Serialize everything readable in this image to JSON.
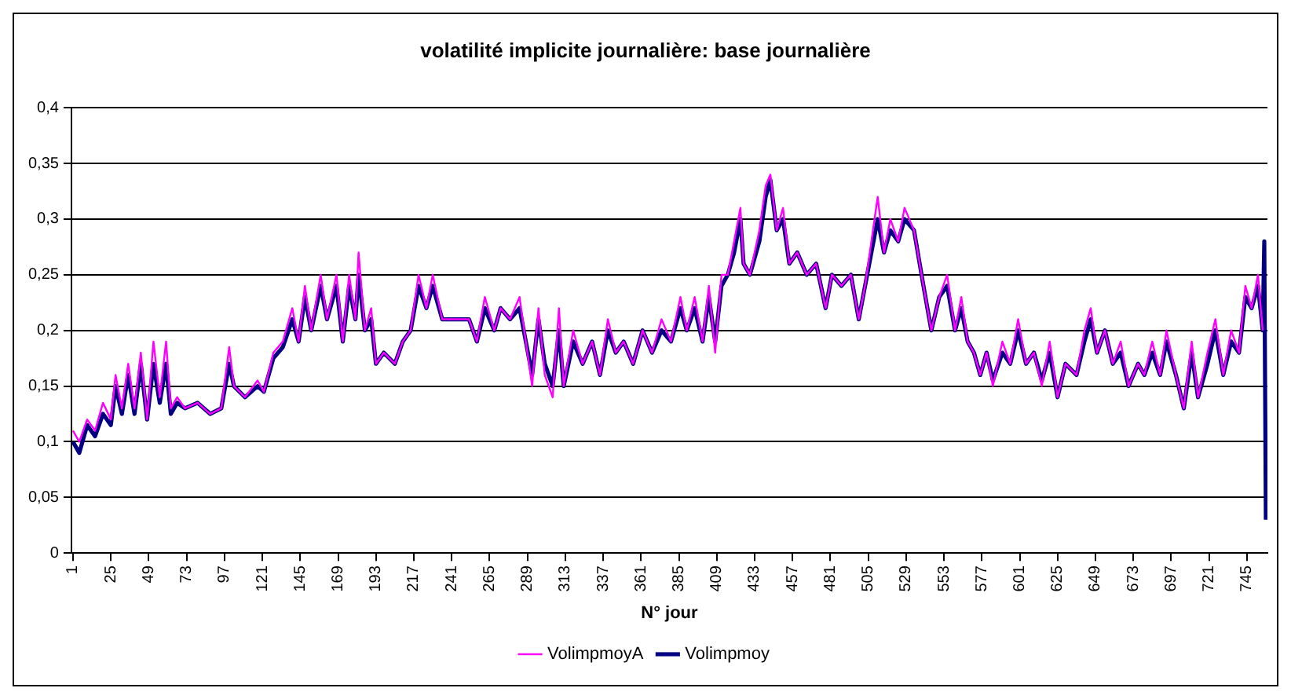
{
  "chart_data": {
    "type": "line",
    "title": "volatilité implicite journalière: base journalière",
    "xlabel": "N° jour",
    "xlim": [
      0,
      758
    ],
    "xticks": [
      1,
      25,
      49,
      73,
      97,
      121,
      145,
      169,
      193,
      217,
      241,
      265,
      289,
      313,
      337,
      361,
      385,
      409,
      433,
      457,
      481,
      505,
      529,
      553,
      577,
      601,
      625,
      649,
      673,
      697,
      721,
      745
    ],
    "ylim": [
      0,
      0.4
    ],
    "yticks": [
      0,
      {
        "value": 0.05,
        "label": "0,05"
      },
      {
        "value": 0.1,
        "label": "0,1"
      },
      {
        "value": 0.15,
        "label": "0,15"
      },
      {
        "value": 0.2,
        "label": "0,2"
      },
      {
        "value": 0.25,
        "label": "0,25"
      },
      {
        "value": 0.3,
        "label": "0,3"
      },
      {
        "value": 0.35,
        "label": "0,35"
      },
      {
        "value": 0.4,
        "label": "0,4"
      }
    ],
    "grid": "y",
    "legend": "bottom",
    "marker": "none",
    "line_style": "solid",
    "series": [
      {
        "name": "Volimpmoy",
        "color": "#000080",
        "x": [
          1,
          5,
          10,
          15,
          20,
          25,
          28,
          32,
          36,
          40,
          44,
          48,
          52,
          56,
          60,
          63,
          67,
          72,
          80,
          88,
          95,
          100,
          103,
          110,
          118,
          122,
          128,
          134,
          140,
          144,
          148,
          152,
          158,
          162,
          168,
          172,
          176,
          180,
          182,
          186,
          190,
          193,
          198,
          205,
          210,
          215,
          220,
          225,
          229,
          235,
          240,
          245,
          252,
          257,
          262,
          268,
          272,
          278,
          284,
          288,
          292,
          296,
          300,
          305,
          309,
          312,
          318,
          324,
          330,
          335,
          340,
          345,
          350,
          356,
          362,
          368,
          374,
          380,
          386,
          390,
          395,
          400,
          404,
          408,
          412,
          416,
          420,
          424,
          426,
          430,
          436,
          440,
          443,
          447,
          451,
          455,
          460,
          466,
          472,
          478,
          482,
          488,
          494,
          499,
          503,
          507,
          511,
          515,
          519,
          524,
          528,
          534,
          540,
          545,
          550,
          555,
          560,
          564,
          568,
          572,
          576,
          580,
          584,
          590,
          595,
          600,
          605,
          610,
          615,
          620,
          625,
          630,
          637,
          642,
          646,
          650,
          655,
          660,
          665,
          670,
          676,
          680,
          685,
          690,
          694,
          700,
          705,
          710,
          714,
          720,
          725,
          730,
          735,
          740,
          744,
          748,
          752,
          755,
          756,
          757
        ],
        "values": [
          0.1,
          0.09,
          0.115,
          0.105,
          0.125,
          0.115,
          0.15,
          0.125,
          0.16,
          0.125,
          0.17,
          0.12,
          0.17,
          0.135,
          0.17,
          0.125,
          0.135,
          0.13,
          0.135,
          0.125,
          0.13,
          0.17,
          0.15,
          0.14,
          0.15,
          0.145,
          0.175,
          0.185,
          0.21,
          0.19,
          0.23,
          0.2,
          0.24,
          0.21,
          0.24,
          0.19,
          0.24,
          0.21,
          0.25,
          0.2,
          0.21,
          0.17,
          0.18,
          0.17,
          0.19,
          0.2,
          0.24,
          0.22,
          0.24,
          0.21,
          0.21,
          0.21,
          0.21,
          0.19,
          0.22,
          0.2,
          0.22,
          0.21,
          0.22,
          0.19,
          0.16,
          0.21,
          0.17,
          0.15,
          0.2,
          0.15,
          0.19,
          0.17,
          0.19,
          0.16,
          0.2,
          0.18,
          0.19,
          0.17,
          0.2,
          0.18,
          0.2,
          0.19,
          0.22,
          0.2,
          0.22,
          0.19,
          0.23,
          0.19,
          0.24,
          0.25,
          0.27,
          0.3,
          0.26,
          0.25,
          0.28,
          0.32,
          0.335,
          0.29,
          0.3,
          0.26,
          0.27,
          0.25,
          0.26,
          0.22,
          0.25,
          0.24,
          0.25,
          0.21,
          0.24,
          0.27,
          0.3,
          0.27,
          0.29,
          0.28,
          0.3,
          0.29,
          0.24,
          0.2,
          0.23,
          0.24,
          0.2,
          0.22,
          0.19,
          0.18,
          0.16,
          0.18,
          0.155,
          0.18,
          0.17,
          0.2,
          0.17,
          0.18,
          0.155,
          0.18,
          0.14,
          0.17,
          0.16,
          0.19,
          0.21,
          0.18,
          0.2,
          0.17,
          0.18,
          0.15,
          0.17,
          0.16,
          0.18,
          0.16,
          0.19,
          0.16,
          0.13,
          0.18,
          0.14,
          0.17,
          0.2,
          0.16,
          0.19,
          0.18,
          0.23,
          0.22,
          0.24,
          0.2,
          0.28,
          0.03
        ]
      },
      {
        "name": "VolimpmoyA",
        "color": "#ff00ff",
        "x": [
          1,
          5,
          10,
          15,
          20,
          25,
          28,
          32,
          36,
          40,
          44,
          48,
          52,
          56,
          60,
          63,
          67,
          72,
          80,
          88,
          95,
          100,
          103,
          110,
          118,
          122,
          128,
          134,
          140,
          144,
          148,
          152,
          158,
          162,
          168,
          172,
          176,
          180,
          182,
          186,
          190,
          193,
          198,
          205,
          210,
          215,
          220,
          225,
          229,
          235,
          240,
          245,
          252,
          257,
          262,
          268,
          272,
          278,
          284,
          288,
          292,
          296,
          300,
          305,
          309,
          312,
          318,
          324,
          330,
          335,
          340,
          345,
          350,
          356,
          362,
          368,
          374,
          380,
          386,
          390,
          395,
          400,
          404,
          408,
          412,
          416,
          420,
          424,
          426,
          430,
          436,
          440,
          443,
          447,
          451,
          455,
          460,
          466,
          472,
          478,
          482,
          488,
          494,
          499,
          503,
          507,
          511,
          515,
          519,
          524,
          528,
          534,
          540,
          545,
          550,
          555,
          560,
          564,
          568,
          572,
          576,
          580,
          584,
          590,
          595,
          600,
          605,
          610,
          615,
          620,
          625,
          630,
          637,
          642,
          646,
          650,
          655,
          660,
          665,
          670,
          676,
          680,
          685,
          690,
          694,
          700,
          705,
          710,
          714,
          720,
          725,
          730,
          735,
          740,
          744,
          748,
          752,
          755
        ],
        "values": [
          0.11,
          0.1,
          0.12,
          0.11,
          0.135,
          0.12,
          0.16,
          0.13,
          0.17,
          0.13,
          0.18,
          0.12,
          0.19,
          0.14,
          0.19,
          0.13,
          0.14,
          0.13,
          0.135,
          0.125,
          0.13,
          0.185,
          0.15,
          0.14,
          0.155,
          0.145,
          0.18,
          0.19,
          0.22,
          0.19,
          0.24,
          0.2,
          0.25,
          0.21,
          0.25,
          0.19,
          0.25,
          0.21,
          0.27,
          0.2,
          0.22,
          0.17,
          0.18,
          0.17,
          0.19,
          0.2,
          0.25,
          0.22,
          0.25,
          0.21,
          0.21,
          0.21,
          0.21,
          0.19,
          0.23,
          0.2,
          0.22,
          0.21,
          0.23,
          0.19,
          0.15,
          0.22,
          0.16,
          0.14,
          0.22,
          0.15,
          0.2,
          0.17,
          0.19,
          0.16,
          0.21,
          0.18,
          0.19,
          0.17,
          0.2,
          0.18,
          0.21,
          0.19,
          0.23,
          0.2,
          0.23,
          0.19,
          0.24,
          0.18,
          0.25,
          0.25,
          0.28,
          0.31,
          0.26,
          0.25,
          0.29,
          0.33,
          0.34,
          0.29,
          0.31,
          0.26,
          0.27,
          0.25,
          0.26,
          0.22,
          0.25,
          0.24,
          0.25,
          0.21,
          0.24,
          0.28,
          0.32,
          0.27,
          0.3,
          0.28,
          0.31,
          0.29,
          0.24,
          0.2,
          0.23,
          0.25,
          0.2,
          0.23,
          0.19,
          0.18,
          0.16,
          0.18,
          0.15,
          0.19,
          0.17,
          0.21,
          0.17,
          0.18,
          0.15,
          0.19,
          0.14,
          0.17,
          0.16,
          0.2,
          0.22,
          0.18,
          0.2,
          0.17,
          0.19,
          0.15,
          0.17,
          0.16,
          0.19,
          0.16,
          0.2,
          0.16,
          0.13,
          0.19,
          0.14,
          0.18,
          0.21,
          0.16,
          0.2,
          0.18,
          0.24,
          0.22,
          0.25,
          0.2
        ]
      }
    ]
  }
}
